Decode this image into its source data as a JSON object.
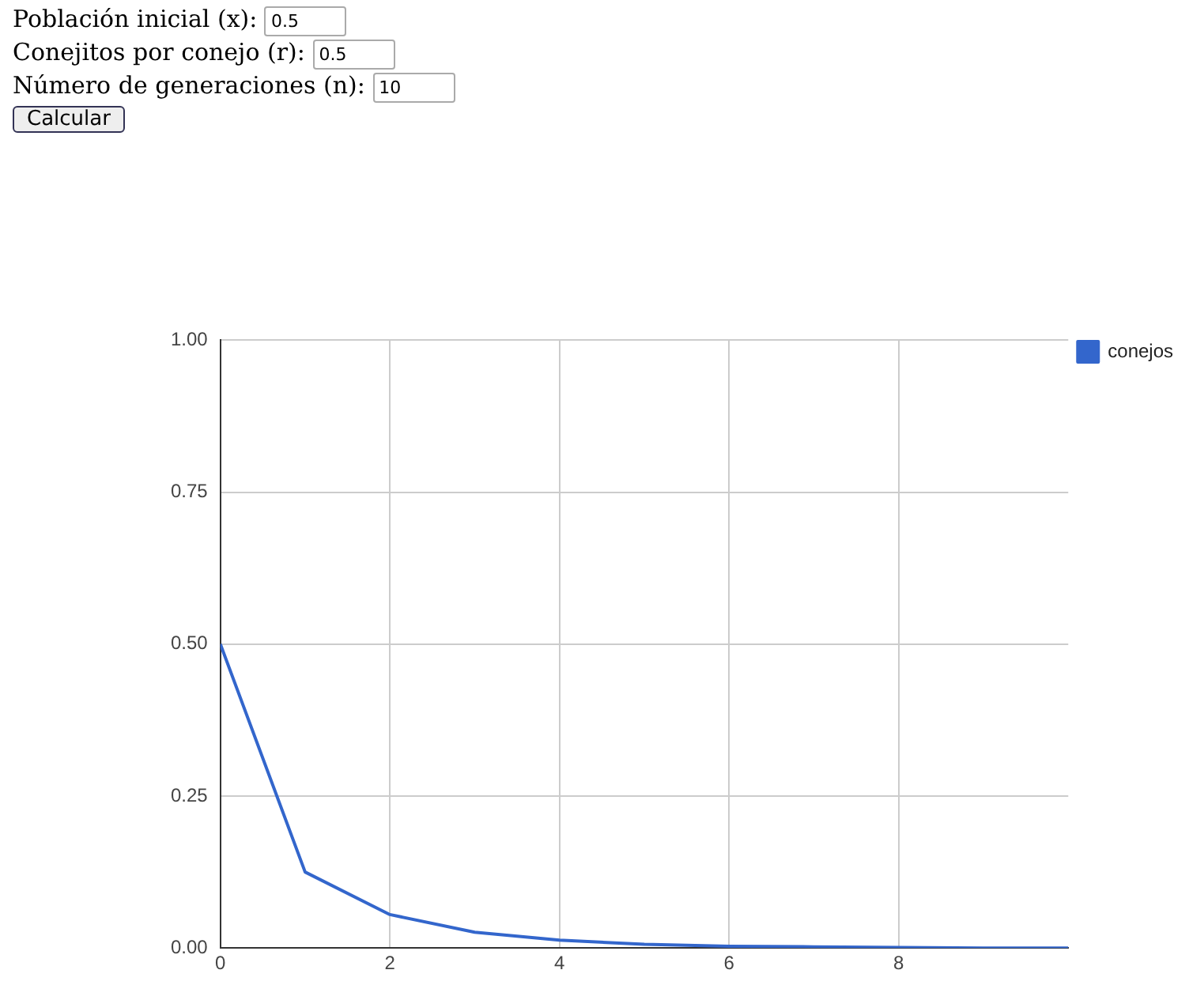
{
  "chart_data": {
    "type": "line",
    "annotations": [
      "Población inicial (x):",
      "0.5",
      "Conejitos por conejo (r):",
      "0.5",
      "Número de generaciones (n):",
      "10",
      "Calcular"
    ],
    "x": [
      0,
      1,
      2,
      3,
      4,
      5,
      6,
      7,
      8,
      9,
      10
    ],
    "series": [
      {
        "name": "conejos",
        "color": "#3366cc",
        "values": [
          0.5,
          0.125,
          0.055,
          0.026,
          0.013,
          0.006,
          0.003,
          0.002,
          0.001,
          0,
          0
        ]
      }
    ],
    "xlim": [
      0,
      10
    ],
    "xticks": [
      0,
      2,
      4,
      6,
      8
    ],
    "ylim": [
      0,
      1
    ],
    "yticks": [
      {
        "value": 0,
        "label": "0.00"
      },
      {
        "value": 0.25,
        "label": "0.25"
      },
      {
        "value": 0.5,
        "label": "0.50"
      },
      {
        "value": 0.75,
        "label": "0.75"
      },
      {
        "value": 1,
        "label": "1.00"
      }
    ],
    "grid": true,
    "legend": "top right",
    "marker": "none",
    "line_style": "solid"
  }
}
